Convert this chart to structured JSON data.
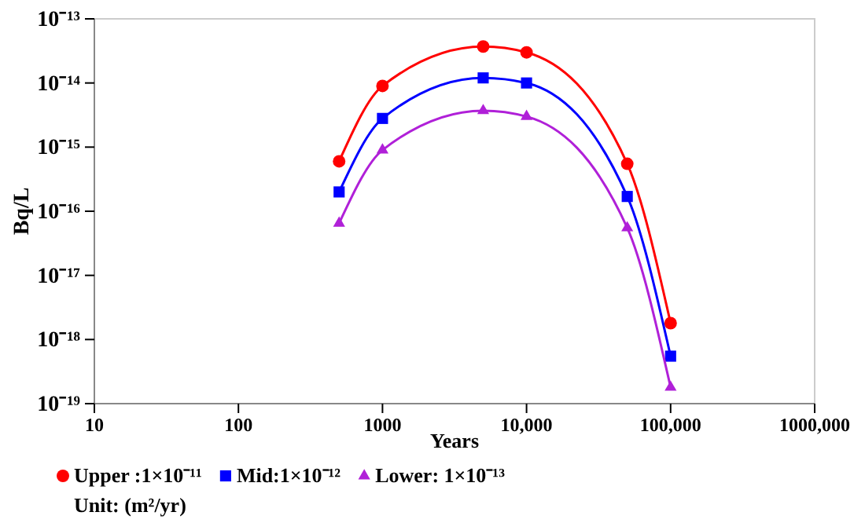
{
  "chart_data": {
    "type": "line",
    "xlabel": "Years",
    "ylabel": "Bq/L",
    "log": "xy",
    "legend": "bottom",
    "legend_title": "Unit: (m²/yr)",
    "xlim": [
      10,
      1000000
    ],
    "xticks": [
      10,
      100,
      1000,
      {
        "value": 10000,
        "label": "10,000"
      },
      {
        "value": 100000,
        "label": "100,000"
      },
      {
        "value": 1000000,
        "label": "1000,000"
      }
    ],
    "ylim": [
      1e-19,
      1e-13
    ],
    "yticks": [
      {
        "value": 1e-19,
        "label": "10⁻¹⁹"
      },
      {
        "value": 1e-18,
        "label": "10⁻¹⁸"
      },
      {
        "value": 1e-17,
        "label": "10⁻¹⁷"
      },
      {
        "value": 1e-16,
        "label": "10⁻¹⁶"
      },
      {
        "value": 1e-15,
        "label": "10⁻¹⁵"
      },
      {
        "value": 1e-14,
        "label": "10⁻¹⁴"
      },
      {
        "value": 1e-13,
        "label": "10⁻¹³"
      }
    ],
    "grid": false,
    "line_style": "solid",
    "x": [
      500,
      1000,
      5000,
      10000,
      50000,
      100000
    ],
    "series": [
      {
        "name": "Upper :1×10⁻¹¹",
        "color": "#ff0000",
        "marker": "circle",
        "values": [
          6e-16,
          9e-15,
          3.7e-14,
          3e-14,
          5.5e-16,
          1.8e-18
        ]
      },
      {
        "name": "Mid:1×10⁻¹²",
        "color": "#0000ff",
        "marker": "square",
        "values": [
          2e-16,
          2.8e-15,
          1.2e-14,
          1e-14,
          1.7e-16,
          5.5e-19
        ]
      },
      {
        "name": "Lower: 1×10⁻¹³",
        "color": "#b020d8",
        "marker": "triangle",
        "values": [
          6.5e-17,
          9e-16,
          3.7e-15,
          3e-15,
          5.5e-17,
          1.8e-19
        ]
      }
    ]
  }
}
